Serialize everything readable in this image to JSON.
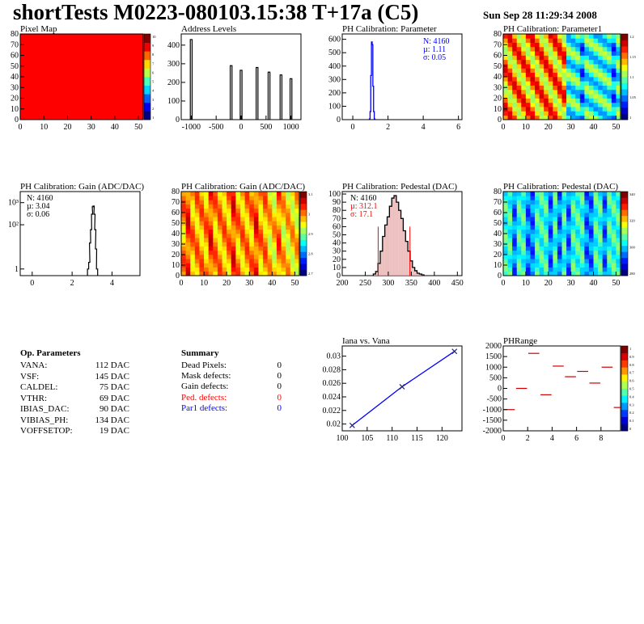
{
  "header": {
    "title": "shortTests M0223-080103.15:38 T+17a (C5)",
    "date": "Sun Sep 28 11:29:34 2008"
  },
  "colors": {
    "red": "#ff0000",
    "blue": "#0000ff",
    "black": "#000000"
  },
  "chart_data": [
    {
      "type": "heatmap",
      "title": "Pixel Map",
      "x_ticks": [
        0,
        10,
        20,
        30,
        40,
        50
      ],
      "y_ticks": [
        0,
        10,
        20,
        30,
        40,
        50,
        60,
        70,
        80
      ],
      "xlim": [
        0,
        52
      ],
      "ylim": [
        0,
        80
      ],
      "palette": "uniform red (all pixels at maximum)",
      "colorbar_ticks": [
        "10",
        "9",
        "8",
        "7",
        "6",
        "5",
        "4",
        "3",
        "2",
        "1"
      ]
    },
    {
      "type": "bar",
      "title": "Address Levels",
      "x_ticks": [
        -1000,
        -500,
        0,
        500,
        1000
      ],
      "y_ticks": [
        0,
        100,
        200,
        300,
        400
      ],
      "xlim": [
        -1200,
        1200
      ],
      "ylim": [
        0,
        460
      ],
      "peaks": [
        {
          "x": -1000,
          "y": 430
        },
        {
          "x": -200,
          "y": 290
        },
        {
          "x": 0,
          "y": 265
        },
        {
          "x": 320,
          "y": 280
        },
        {
          "x": 560,
          "y": 255
        },
        {
          "x": 800,
          "y": 240
        },
        {
          "x": 1000,
          "y": 220
        }
      ]
    },
    {
      "type": "bar",
      "title": "PH Calibration: Parameter",
      "x_ticks": [
        0,
        2,
        4,
        6
      ],
      "y_ticks": [
        0,
        100,
        200,
        300,
        400,
        500,
        600
      ],
      "xlim": [
        -0.6,
        6.2
      ],
      "ylim": [
        0,
        640
      ],
      "stats": {
        "entries": "N: 4160",
        "mean": "µ: 1.11",
        "sigma": "σ: 0.05"
      },
      "histogram": {
        "x": [
          0.96,
          1.0,
          1.04,
          1.08,
          1.12,
          1.16,
          1.2,
          1.24
        ],
        "y": [
          5,
          60,
          330,
          580,
          560,
          250,
          60,
          5
        ]
      }
    },
    {
      "type": "heatmap",
      "title": "PH Calibration: Parameter1",
      "x_ticks": [
        0,
        10,
        20,
        30,
        40,
        50
      ],
      "y_ticks": [
        0,
        10,
        20,
        30,
        40,
        50,
        60,
        70,
        80
      ],
      "xlim": [
        0,
        52
      ],
      "ylim": [
        0,
        80
      ],
      "palette": "jet; orange/red at columns 0-14, green/cyan/blue toward the right",
      "colorbar_ticks": [
        "1.2",
        "1.15",
        "1.1",
        "1.05",
        "1"
      ]
    },
    {
      "type": "line",
      "title": "PH Calibration: Gain (ADC/DAC)",
      "log_y": true,
      "x_ticks": [
        0,
        2,
        4
      ],
      "y_ticks": [
        "1",
        "10²",
        "10³"
      ],
      "xlim": [
        -0.6,
        5.4
      ],
      "ylim_log": [
        -0.3,
        3.5
      ],
      "stats": {
        "entries": "N: 4160",
        "mean": "µ: 3.04",
        "sigma": "σ: 0.06"
      },
      "histogram": {
        "x": [
          2.8,
          2.86,
          2.9,
          2.95,
          3.0,
          3.04,
          3.08,
          3.12,
          3.16,
          3.2,
          3.25
        ],
        "y": [
          1,
          2,
          15,
          60,
          300,
          650,
          700,
          300,
          60,
          8,
          1
        ]
      }
    },
    {
      "type": "heatmap",
      "title": "PH Calibration: Gain (ADC/DAC)",
      "x_ticks": [
        0,
        10,
        20,
        30,
        40,
        50
      ],
      "y_ticks": [
        0,
        10,
        20,
        30,
        40,
        50,
        60,
        70,
        80
      ],
      "xlim": [
        0,
        52
      ],
      "ylim": [
        0,
        80
      ],
      "palette": "jet; predominantly orange/yellow with red columns",
      "colorbar_ticks": [
        "3.1",
        "3",
        "2.9",
        "2.8",
        "2.7"
      ]
    },
    {
      "type": "bar",
      "title": "PH Calibration: Pedestal (DAC)",
      "x_ticks": [
        200,
        250,
        300,
        350,
        400,
        450
      ],
      "y_ticks": [
        0,
        10,
        20,
        30,
        40,
        50,
        60,
        70,
        80,
        90,
        100
      ],
      "xlim": [
        200,
        460
      ],
      "ylim": [
        0,
        103
      ],
      "stats": {
        "entries": "N: 4160",
        "mean": "µ: 312.1",
        "sigma": "σ: 17.1"
      },
      "cut_lines": [
        278,
        347
      ],
      "histogram": {
        "x": [
          270,
          275,
          280,
          285,
          290,
          295,
          300,
          305,
          310,
          315,
          320,
          325,
          330,
          335,
          340,
          345,
          350,
          355,
          360,
          365,
          370,
          375
        ],
        "y": [
          2,
          5,
          15,
          30,
          48,
          62,
          72,
          85,
          95,
          98,
          90,
          80,
          70,
          55,
          42,
          30,
          18,
          10,
          6,
          3,
          2,
          1
        ]
      }
    },
    {
      "type": "heatmap",
      "title": "PH Calibration: Pedestal (DAC)",
      "x_ticks": [
        0,
        10,
        20,
        30,
        40,
        50
      ],
      "y_ticks": [
        0,
        10,
        20,
        30,
        40,
        50,
        60,
        70,
        80
      ],
      "xlim": [
        0,
        52
      ],
      "ylim": [
        0,
        80
      ],
      "palette": "jet; mostly green/cyan with blue vertical bands",
      "colorbar_ticks": [
        "340",
        "320",
        "300",
        "280"
      ]
    },
    {
      "type": "line",
      "title": "Iana vs. Vana",
      "x_ticks": [
        100,
        105,
        110,
        115,
        120
      ],
      "y_ticks": [
        0.02,
        0.022,
        0.024,
        0.026,
        0.028,
        0.03
      ],
      "xlim": [
        100,
        124
      ],
      "ylim": [
        0.019,
        0.0315
      ],
      "x": [
        102,
        112,
        122.5
      ],
      "y": [
        0.0198,
        0.0255,
        0.0307
      ]
    },
    {
      "type": "scatter",
      "title": "PHRange",
      "x_ticks": [
        0,
        2,
        4,
        6,
        8
      ],
      "y_ticks": [
        -2000,
        -1500,
        -1000,
        -500,
        0,
        500,
        1000,
        1500,
        2000
      ],
      "xlim": [
        0,
        9.6
      ],
      "ylim": [
        -2000,
        2000
      ],
      "colorbar_ticks": [
        "1",
        "0.9",
        "0.8",
        "0.7",
        "0.6",
        "0.5",
        "0.4",
        "0.3",
        "0.2",
        "0.1",
        "0"
      ],
      "segments_x": [
        0.5,
        1.5,
        2.5,
        3.5,
        4.5,
        5.5,
        6.5,
        7.5,
        8.5,
        9.5
      ],
      "segments_y": [
        -1000,
        0,
        1650,
        -300,
        1050,
        550,
        800,
        250,
        1000,
        -900
      ]
    }
  ],
  "op_parameters": {
    "title": "Op. Parameters",
    "rows": [
      {
        "label": "VANA:",
        "value": "112 DAC"
      },
      {
        "label": "VSF:",
        "value": "145 DAC"
      },
      {
        "label": "CALDEL:",
        "value": "75 DAC"
      },
      {
        "label": "VTHR:",
        "value": "69 DAC"
      },
      {
        "label": "IBIAS_DAC:",
        "value": "90 DAC"
      },
      {
        "label": "VIBIAS_PH:",
        "value": "134 DAC"
      },
      {
        "label": "VOFFSETOP:",
        "value": "19 DAC"
      }
    ]
  },
  "summary": {
    "title": "Summary",
    "rows": [
      {
        "label": "Dead Pixels:",
        "value": "0",
        "color": "#000000"
      },
      {
        "label": "Mask defects:",
        "value": "0",
        "color": "#000000"
      },
      {
        "label": "Gain defects:",
        "value": "0",
        "color": "#000000"
      },
      {
        "label": "Ped. defects:",
        "value": "0",
        "color": "#ff0000"
      },
      {
        "label": "Par1 defects:",
        "value": "0",
        "color": "#0000ff"
      }
    ]
  }
}
